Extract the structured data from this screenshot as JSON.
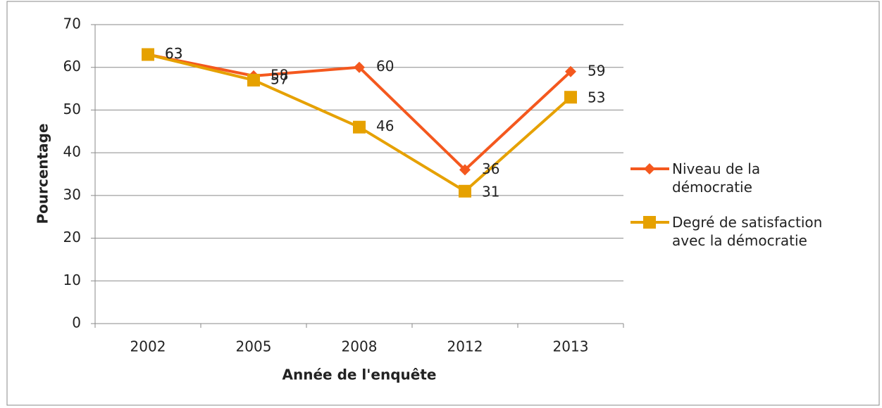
{
  "chart_data": {
    "type": "line",
    "x_label": "Année de l'enquête",
    "y_label": "Pourcentage",
    "categories": [
      "2002",
      "2005",
      "2008",
      "2012",
      "2013"
    ],
    "series": [
      {
        "name": "Niveau de la démocratie",
        "color": "#f4581e",
        "marker": "diamond",
        "values": [
          63,
          58,
          60,
          36,
          59
        ]
      },
      {
        "name": "Degré de satisfaction avec la démocratie",
        "color": "#e6a100",
        "marker": "square",
        "values": [
          63,
          57,
          46,
          31,
          53
        ]
      }
    ],
    "ylim": [
      0,
      70
    ],
    "yticks": [
      0,
      10,
      20,
      30,
      40,
      50,
      60,
      70
    ],
    "grid": true,
    "legend": "right"
  }
}
